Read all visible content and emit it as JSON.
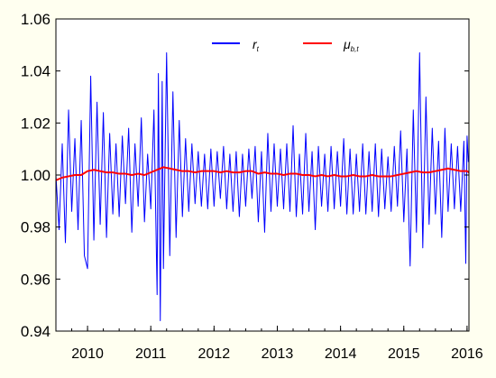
{
  "chart_data": {
    "type": "line",
    "title": "",
    "xlabel": "",
    "ylabel": "",
    "xlim": [
      2009.5,
      2016.03
    ],
    "ylim": [
      0.94,
      1.06
    ],
    "grid": false,
    "legend_position": "top-center",
    "yticks": [
      "0.94",
      "0.96",
      "0.98",
      "1.00",
      "1.02",
      "1.04",
      "1.06"
    ],
    "xticks": [
      "2010",
      "2011",
      "2012",
      "2013",
      "2014",
      "2015",
      "2016"
    ],
    "series": [
      {
        "name": "r",
        "name_subscript": "t",
        "color": "#0000ff",
        "style": "high-frequency series oscillating around 1.00",
        "points": [
          [
            2009.5,
            1.0
          ],
          [
            2009.55,
            0.979
          ],
          [
            2009.6,
            1.012
          ],
          [
            2009.65,
            0.974
          ],
          [
            2009.7,
            1.025
          ],
          [
            2009.75,
            0.986
          ],
          [
            2009.8,
            1.014
          ],
          [
            2009.85,
            0.979
          ],
          [
            2009.9,
            1.021
          ],
          [
            2009.95,
            0.969
          ],
          [
            2010.0,
            0.964
          ],
          [
            2010.05,
            1.038
          ],
          [
            2010.1,
            0.975
          ],
          [
            2010.15,
            1.028
          ],
          [
            2010.2,
            0.981
          ],
          [
            2010.25,
            1.024
          ],
          [
            2010.3,
            0.976
          ],
          [
            2010.35,
            1.016
          ],
          [
            2010.4,
            0.985
          ],
          [
            2010.45,
            1.012
          ],
          [
            2010.5,
            0.984
          ],
          [
            2010.55,
            1.015
          ],
          [
            2010.6,
            0.989
          ],
          [
            2010.65,
            1.018
          ],
          [
            2010.7,
            0.978
          ],
          [
            2010.75,
            1.012
          ],
          [
            2010.8,
            0.988
          ],
          [
            2010.85,
            1.022
          ],
          [
            2010.9,
            0.982
          ],
          [
            2010.95,
            1.008
          ],
          [
            2011.0,
            0.987
          ],
          [
            2011.05,
            1.025
          ],
          [
            2011.1,
            0.954
          ],
          [
            2011.12,
            1.039
          ],
          [
            2011.15,
            0.944
          ],
          [
            2011.18,
            1.036
          ],
          [
            2011.2,
            0.964
          ],
          [
            2011.25,
            1.047
          ],
          [
            2011.3,
            0.969
          ],
          [
            2011.35,
            1.032
          ],
          [
            2011.4,
            0.976
          ],
          [
            2011.45,
            1.021
          ],
          [
            2011.5,
            0.984
          ],
          [
            2011.55,
            1.014
          ],
          [
            2011.6,
            0.986
          ],
          [
            2011.65,
            1.012
          ],
          [
            2011.7,
            0.989
          ],
          [
            2011.75,
            1.009
          ],
          [
            2011.8,
            0.988
          ],
          [
            2011.85,
            1.008
          ],
          [
            2011.9,
            0.987
          ],
          [
            2011.95,
            1.01
          ],
          [
            2012.0,
            0.988
          ],
          [
            2012.05,
            1.009
          ],
          [
            2012.1,
            0.991
          ],
          [
            2012.15,
            1.011
          ],
          [
            2012.2,
            0.987
          ],
          [
            2012.25,
            1.008
          ],
          [
            2012.3,
            0.986
          ],
          [
            2012.35,
            1.009
          ],
          [
            2012.4,
            0.984
          ],
          [
            2012.45,
            1.008
          ],
          [
            2012.5,
            0.988
          ],
          [
            2012.55,
            1.01
          ],
          [
            2012.6,
            0.991
          ],
          [
            2012.65,
            1.011
          ],
          [
            2012.7,
            0.982
          ],
          [
            2012.75,
            1.009
          ],
          [
            2012.8,
            0.978
          ],
          [
            2012.85,
            1.016
          ],
          [
            2012.9,
            0.986
          ],
          [
            2012.95,
            1.012
          ],
          [
            2013.0,
            0.988
          ],
          [
            2013.05,
            1.01
          ],
          [
            2013.1,
            0.987
          ],
          [
            2013.15,
            1.012
          ],
          [
            2013.2,
            0.986
          ],
          [
            2013.25,
            1.019
          ],
          [
            2013.3,
            0.984
          ],
          [
            2013.35,
            1.008
          ],
          [
            2013.4,
            0.985
          ],
          [
            2013.45,
            1.016
          ],
          [
            2013.5,
            0.986
          ],
          [
            2013.55,
            1.009
          ],
          [
            2013.6,
            0.979
          ],
          [
            2013.65,
            1.011
          ],
          [
            2013.7,
            0.988
          ],
          [
            2013.75,
            1.008
          ],
          [
            2013.8,
            0.986
          ],
          [
            2013.85,
            1.011
          ],
          [
            2013.9,
            0.987
          ],
          [
            2013.95,
            1.009
          ],
          [
            2014.0,
            0.988
          ],
          [
            2014.05,
            1.014
          ],
          [
            2014.1,
            0.985
          ],
          [
            2014.15,
            1.01
          ],
          [
            2014.2,
            0.985
          ],
          [
            2014.25,
            1.008
          ],
          [
            2014.3,
            0.986
          ],
          [
            2014.35,
            1.012
          ],
          [
            2014.4,
            0.985
          ],
          [
            2014.45,
            1.009
          ],
          [
            2014.5,
            0.986
          ],
          [
            2014.55,
            1.012
          ],
          [
            2014.6,
            0.984
          ],
          [
            2014.65,
            1.01
          ],
          [
            2014.7,
            0.987
          ],
          [
            2014.75,
            1.007
          ],
          [
            2014.8,
            0.986
          ],
          [
            2014.85,
            1.011
          ],
          [
            2014.9,
            0.988
          ],
          [
            2014.95,
            1.017
          ],
          [
            2015.0,
            0.982
          ],
          [
            2015.05,
            1.01
          ],
          [
            2015.1,
            0.965
          ],
          [
            2015.15,
            1.025
          ],
          [
            2015.2,
            0.978
          ],
          [
            2015.25,
            1.047
          ],
          [
            2015.3,
            0.972
          ],
          [
            2015.35,
            1.03
          ],
          [
            2015.4,
            0.981
          ],
          [
            2015.45,
            1.018
          ],
          [
            2015.5,
            0.985
          ],
          [
            2015.55,
            1.013
          ],
          [
            2015.6,
            0.976
          ],
          [
            2015.65,
            1.018
          ],
          [
            2015.7,
            0.986
          ],
          [
            2015.75,
            1.012
          ],
          [
            2015.8,
            0.987
          ],
          [
            2015.85,
            1.011
          ],
          [
            2015.9,
            0.986
          ],
          [
            2015.95,
            1.013
          ],
          [
            2015.98,
            0.966
          ],
          [
            2016.0,
            1.015
          ],
          [
            2016.02,
            1.005
          ]
        ]
      },
      {
        "name": "μ",
        "name_subscript": "b,t",
        "color": "#ff0000",
        "style": "smooth level series close to 1.00",
        "points": [
          [
            2009.5,
            0.998
          ],
          [
            2009.6,
            0.999
          ],
          [
            2009.7,
            0.9995
          ],
          [
            2009.8,
            1.0
          ],
          [
            2009.9,
            1.0
          ],
          [
            2010.0,
            1.0015
          ],
          [
            2010.1,
            1.002
          ],
          [
            2010.2,
            1.0015
          ],
          [
            2010.3,
            1.001
          ],
          [
            2010.4,
            1.001
          ],
          [
            2010.5,
            1.0005
          ],
          [
            2010.6,
            1.0005
          ],
          [
            2010.7,
            1.0
          ],
          [
            2010.8,
            1.0005
          ],
          [
            2010.9,
            1.0
          ],
          [
            2011.0,
            1.001
          ],
          [
            2011.1,
            1.002
          ],
          [
            2011.2,
            1.003
          ],
          [
            2011.3,
            1.0025
          ],
          [
            2011.4,
            1.002
          ],
          [
            2011.5,
            1.0015
          ],
          [
            2011.6,
            1.0015
          ],
          [
            2011.7,
            1.001
          ],
          [
            2011.8,
            1.0015
          ],
          [
            2011.9,
            1.0015
          ],
          [
            2012.0,
            1.0015
          ],
          [
            2012.1,
            1.001
          ],
          [
            2012.2,
            1.0015
          ],
          [
            2012.3,
            1.001
          ],
          [
            2012.4,
            1.001
          ],
          [
            2012.5,
            1.0015
          ],
          [
            2012.6,
            1.0015
          ],
          [
            2012.7,
            1.0005
          ],
          [
            2012.8,
            1.001
          ],
          [
            2012.9,
            1.0005
          ],
          [
            2013.0,
            1.0005
          ],
          [
            2013.1,
            1.0
          ],
          [
            2013.2,
            1.0005
          ],
          [
            2013.3,
            1.0005
          ],
          [
            2013.4,
            1.0
          ],
          [
            2013.5,
            1.0
          ],
          [
            2013.6,
            0.9995
          ],
          [
            2013.7,
            1.0
          ],
          [
            2013.8,
            0.9995
          ],
          [
            2013.9,
            1.0
          ],
          [
            2014.0,
            0.9995
          ],
          [
            2014.1,
            0.9995
          ],
          [
            2014.2,
            1.0
          ],
          [
            2014.3,
            0.9995
          ],
          [
            2014.4,
            0.9995
          ],
          [
            2014.5,
            1.0
          ],
          [
            2014.6,
            0.9995
          ],
          [
            2014.7,
            0.9995
          ],
          [
            2014.8,
            0.9995
          ],
          [
            2014.9,
            1.0
          ],
          [
            2015.0,
            1.0005
          ],
          [
            2015.1,
            1.001
          ],
          [
            2015.2,
            1.0015
          ],
          [
            2015.3,
            1.001
          ],
          [
            2015.4,
            1.001
          ],
          [
            2015.5,
            1.0015
          ],
          [
            2015.6,
            1.002
          ],
          [
            2015.7,
            1.0025
          ],
          [
            2015.8,
            1.002
          ],
          [
            2015.9,
            1.0015
          ],
          [
            2016.0,
            1.0015
          ],
          [
            2016.03,
            1.001
          ]
        ]
      }
    ]
  }
}
